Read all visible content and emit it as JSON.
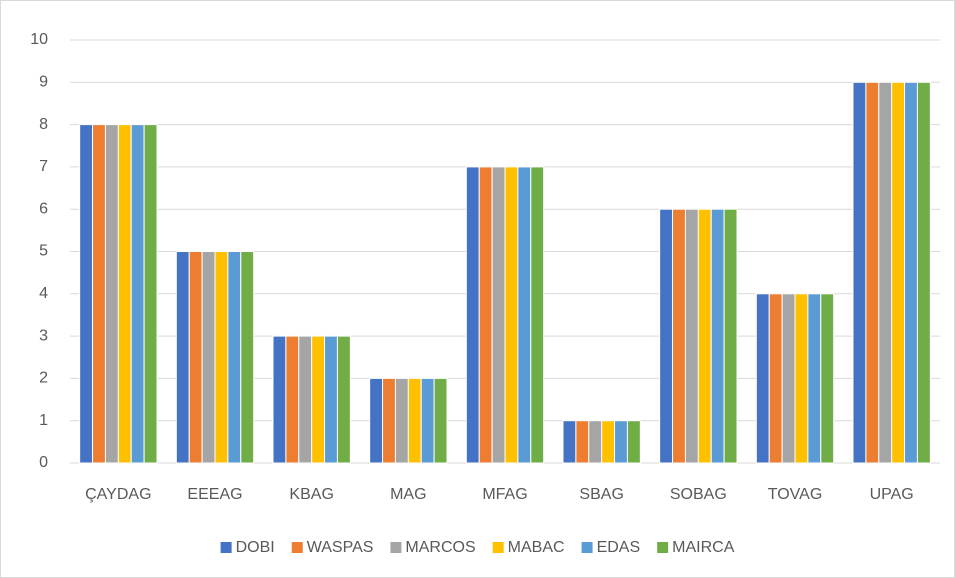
{
  "chart_data": {
    "type": "bar",
    "categories": [
      "ÇAYDAG",
      "EEEAG",
      "KBAG",
      "MAG",
      "MFAG",
      "SBAG",
      "SOBAG",
      "TOVAG",
      "UPAG"
    ],
    "series": [
      {
        "name": "DOBI",
        "color": "#4472c4",
        "values": [
          8,
          5,
          3,
          2,
          7,
          1,
          6,
          4,
          9
        ]
      },
      {
        "name": "WASPAS",
        "color": "#ed7d31",
        "values": [
          8,
          5,
          3,
          2,
          7,
          1,
          6,
          4,
          9
        ]
      },
      {
        "name": "MARCOS",
        "color": "#a5a5a5",
        "values": [
          8,
          5,
          3,
          2,
          7,
          1,
          6,
          4,
          9
        ]
      },
      {
        "name": "MABAC",
        "color": "#ffc000",
        "values": [
          8,
          5,
          3,
          2,
          7,
          1,
          6,
          4,
          9
        ]
      },
      {
        "name": "EDAS",
        "color": "#5b9bd5",
        "values": [
          8,
          5,
          3,
          2,
          7,
          1,
          6,
          4,
          9
        ]
      },
      {
        "name": "MAIRCA",
        "color": "#70ad47",
        "values": [
          8,
          5,
          3,
          2,
          7,
          1,
          6,
          4,
          9
        ]
      }
    ],
    "ylim": [
      0,
      10
    ],
    "yticks": [
      0,
      1,
      2,
      3,
      4,
      5,
      6,
      7,
      8,
      9,
      10
    ],
    "grid": true,
    "legend": "bottom"
  }
}
